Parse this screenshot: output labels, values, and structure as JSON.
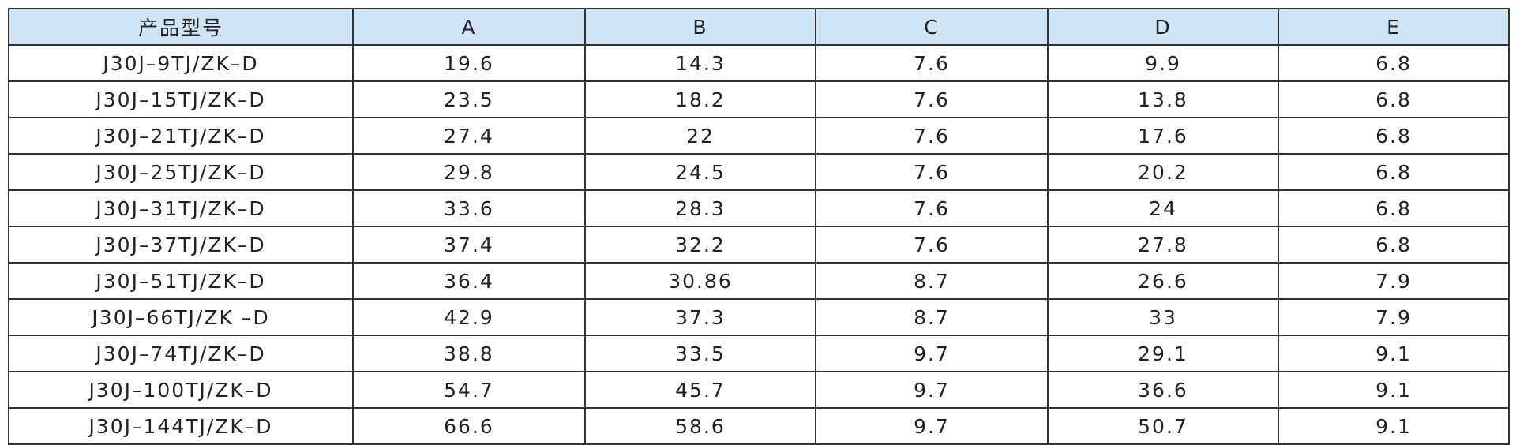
{
  "table": {
    "header": [
      "产品型号",
      "A",
      "B",
      "C",
      "D",
      "E"
    ],
    "rows": [
      [
        "J30J–9TJ/ZK–D",
        "19.6",
        "14.3",
        "7.6",
        "9.9",
        "6.8"
      ],
      [
        "J30J–15TJ/ZK–D",
        "23.5",
        "18.2",
        "7.6",
        "13.8",
        "6.8"
      ],
      [
        "J30J–21TJ/ZK–D",
        "27.4",
        "22",
        "7.6",
        "17.6",
        "6.8"
      ],
      [
        "J30J–25TJ/ZK–D",
        "29.8",
        "24.5",
        "7.6",
        "20.2",
        "6.8"
      ],
      [
        "J30J–31TJ/ZK–D",
        "33.6",
        "28.3",
        "7.6",
        "24",
        "6.8"
      ],
      [
        "J30J–37TJ/ZK–D",
        "37.4",
        "32.2",
        "7.6",
        "27.8",
        "6.8"
      ],
      [
        "J30J–51TJ/ZK–D",
        "36.4",
        "30.86",
        "8.7",
        "26.6",
        "7.9"
      ],
      [
        "J30J–66TJ/ZK –D",
        "42.9",
        "37.3",
        "8.7",
        "33",
        "7.9"
      ],
      [
        "J30J–74TJ/ZK–D",
        "38.8",
        "33.5",
        "9.7",
        "29.1",
        "9.1"
      ],
      [
        "J30J–100TJ/ZK–D",
        "54.7",
        "45.7",
        "9.7",
        "36.6",
        "9.1"
      ],
      [
        "J30J–144TJ/ZK–D",
        "66.6",
        "58.6",
        "9.7",
        "50.7",
        "9.1"
      ]
    ]
  }
}
